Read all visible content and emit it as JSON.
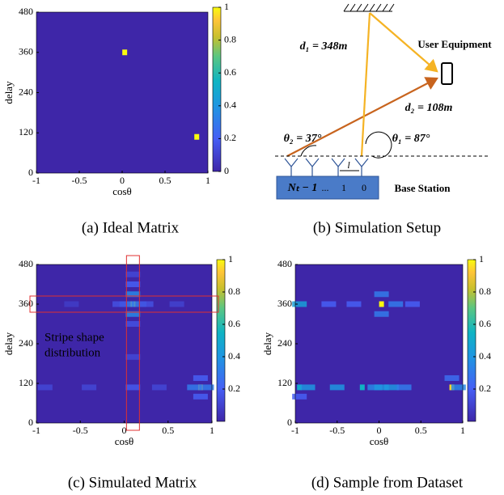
{
  "chart_data": [
    {
      "type": "heatmap",
      "title": "(a) Ideal Matrix",
      "xlabel": "cosθ",
      "ylabel": "delay",
      "xlim": [
        -1,
        1
      ],
      "ylim": [
        0,
        480
      ],
      "xticks": [
        -1,
        -0.5,
        0,
        0.5,
        1
      ],
      "yticks": [
        0,
        120,
        240,
        360,
        480
      ],
      "clim": [
        0,
        1
      ],
      "cticks": [
        0,
        0.2,
        0.4,
        0.6,
        0.8,
        1
      ],
      "x": [
        0.03,
        0.87
      ],
      "y": [
        360,
        108
      ],
      "values": [
        1,
        1
      ]
    },
    {
      "type": "heatmap",
      "title": "(c) Simulated Matrix",
      "xlabel": "cosθ",
      "ylabel": "delay",
      "annotation": [
        "Stripe shape",
        "distribution"
      ],
      "xlim": [
        -1,
        1
      ],
      "ylim": [
        0,
        480
      ],
      "xticks": [
        -1,
        -0.5,
        0,
        0.5,
        1
      ],
      "yticks": [
        0,
        120,
        240,
        360,
        480
      ],
      "clim": [
        0,
        1
      ],
      "cticks": [
        0.2,
        0.4,
        0.6,
        0.8,
        1
      ],
      "x": [
        0.1,
        0.87,
        0.1,
        0.1,
        0.1,
        0.1,
        0.1,
        0.03,
        0.17,
        -0.05,
        0.25,
        -0.6,
        0.6,
        0.1,
        0.8,
        0.94,
        0.87,
        0.87,
        -0.9,
        -0.4,
        0.4,
        0.1
      ],
      "y": [
        360,
        108,
        330,
        390,
        420,
        300,
        450,
        360,
        360,
        360,
        360,
        360,
        360,
        108,
        108,
        108,
        80,
        136,
        108,
        108,
        108,
        200
      ],
      "values": [
        1,
        0.9,
        0.35,
        0.35,
        0.2,
        0.15,
        0.12,
        0.3,
        0.3,
        0.15,
        0.15,
        0.08,
        0.1,
        0.18,
        0.3,
        0.3,
        0.2,
        0.2,
        0.12,
        0.12,
        0.12,
        0.12
      ]
    },
    {
      "type": "heatmap",
      "title": "(d) Sample from Dataset",
      "xlabel": "cosθ",
      "ylabel": "delay",
      "xlim": [
        -1,
        1
      ],
      "ylim": [
        0,
        480
      ],
      "xticks": [
        -1,
        -0.5,
        0,
        0.5,
        1
      ],
      "yticks": [
        0,
        120,
        240,
        360,
        480
      ],
      "clim": [
        0,
        1
      ],
      "cticks": [
        0.2,
        0.4,
        0.6,
        0.8,
        1
      ],
      "x": [
        0.03,
        0.87,
        -0.95,
        -0.6,
        -0.3,
        0.2,
        0.4,
        -0.95,
        -0.85,
        -0.5,
        -0.2,
        -0.05,
        0.03,
        0.15,
        0.3,
        0.95,
        0.03,
        0.03,
        -0.95,
        0.87
      ],
      "y": [
        360,
        108,
        360,
        360,
        360,
        360,
        360,
        108,
        108,
        108,
        108,
        108,
        108,
        108,
        108,
        108,
        390,
        330,
        80,
        136
      ],
      "values": [
        1,
        0.95,
        0.45,
        0.2,
        0.2,
        0.3,
        0.2,
        0.5,
        0.4,
        0.4,
        0.55,
        0.35,
        0.4,
        0.4,
        0.3,
        0.35,
        0.3,
        0.3,
        0.2,
        0.25
      ]
    }
  ],
  "diagram": {
    "caption": "(b) Simulation Setup",
    "d1": "d₁ = 348m",
    "ue": "User Equipment",
    "d2": "d₂ = 108m",
    "theta2": "θ₂ = 37°",
    "theta1": "θ₁ = 87°",
    "ant": [
      "Nₜ − 1",
      "...",
      "1",
      "0"
    ],
    "l": "l",
    "bs": "Base Station"
  }
}
